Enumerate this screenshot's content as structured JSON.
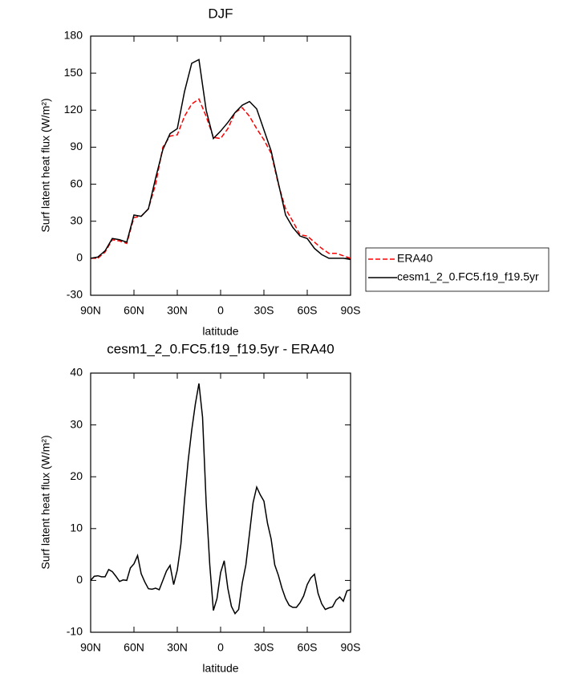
{
  "chart_data": [
    {
      "type": "line",
      "title": "DJF",
      "xlabel": "latitude",
      "ylabel": "Surf latent heat flux (W/m²)",
      "x": [
        90,
        85,
        80,
        75,
        70,
        65,
        60,
        55,
        50,
        45,
        40,
        35,
        30,
        25,
        20,
        15,
        10,
        5,
        0,
        -5,
        -10,
        -15,
        -20,
        -25,
        -30,
        -35,
        -40,
        -45,
        -50,
        -55,
        -60,
        -65,
        -70,
        -75,
        -80,
        -85,
        -90
      ],
      "series": [
        {
          "name": "ERA40",
          "color": "#ff0000",
          "dashed": true,
          "values": [
            0,
            0,
            5,
            15,
            14,
            12,
            33,
            34,
            40,
            60,
            90,
            99,
            100,
            115,
            125,
            129,
            115,
            98,
            97,
            105,
            118,
            122,
            115,
            105,
            96,
            85,
            60,
            40,
            30,
            19,
            18,
            13,
            8,
            4,
            4,
            2,
            0
          ]
        },
        {
          "name": "cesm1_2_0.FC5.f19_f19.5yr",
          "color": "#000000",
          "dashed": false,
          "values": [
            0,
            1,
            6,
            16,
            15,
            13,
            35,
            34,
            40,
            65,
            88,
            101,
            105,
            135,
            158,
            161,
            120,
            97,
            103,
            110,
            118,
            124,
            127,
            121,
            104,
            87,
            61,
            35,
            25,
            18,
            16,
            8,
            3,
            0,
            0,
            0,
            -1
          ]
        }
      ],
      "xlim": [
        90,
        -90
      ],
      "ylim": [
        -30,
        180
      ],
      "xticks": [
        {
          "value": 90,
          "label": "90N"
        },
        {
          "value": 60,
          "label": "60N"
        },
        {
          "value": 30,
          "label": "30N"
        },
        0,
        {
          "value": -30,
          "label": "30S"
        },
        {
          "value": -60,
          "label": "60S"
        },
        {
          "value": -90,
          "label": "90S"
        }
      ],
      "yticks": [
        -30,
        0,
        30,
        60,
        90,
        120,
        150,
        180
      ],
      "legend": "right"
    },
    {
      "type": "line",
      "title": "cesm1_2_0.FC5.f19_f19.5yr - ERA40",
      "xlabel": "latitude",
      "ylabel": "Surf latent heat flux (W/m²)",
      "x": [
        90,
        87.5,
        85,
        82.5,
        80,
        77.5,
        75,
        72.5,
        70,
        67.5,
        65,
        62.5,
        60,
        57.5,
        55,
        52.5,
        50,
        47.5,
        45,
        42.5,
        40,
        37.5,
        35,
        32.5,
        30,
        27.5,
        25,
        22.5,
        20,
        17.5,
        15,
        12.5,
        10,
        7.5,
        5,
        2.5,
        0,
        -2.5,
        -5,
        -7.5,
        -10,
        -12.5,
        -15,
        -17.5,
        -20,
        -22.5,
        -25,
        -27.5,
        -30,
        -32.5,
        -35,
        -37.5,
        -40,
        -42.5,
        -45,
        -47.5,
        -50,
        -52.5,
        -55,
        -57.5,
        -60,
        -62.5,
        -65,
        -67.5,
        -70,
        -72.5,
        -75,
        -77.5,
        -80,
        -82.5,
        -85,
        -87.5,
        -90
      ],
      "series": [
        {
          "color": "#000000",
          "dashed": false,
          "values": [
            0,
            0.8,
            0.9,
            0.7,
            0.7,
            2.1,
            1.7,
            0.8,
            -0.2,
            0.1,
            0,
            2.4,
            3.2,
            4.8,
            1.3,
            -0.3,
            -1.6,
            -1.7,
            -1.5,
            -1.8,
            0,
            1.8,
            2.9,
            -0.8,
            2,
            7,
            15.5,
            23,
            29,
            34,
            38,
            31.5,
            15,
            3,
            -5.8,
            -3.5,
            1.5,
            3.8,
            -1.5,
            -5,
            -6.4,
            -5.6,
            -0.5,
            3,
            9,
            15,
            18,
            16.5,
            15.3,
            11,
            8,
            3,
            1,
            -1.5,
            -3.5,
            -4.8,
            -5.2,
            -5.2,
            -4.3,
            -3,
            -0.8,
            0.5,
            1.2,
            -2.5,
            -4.5,
            -5.6,
            -5.3,
            -5.1,
            -3.8,
            -3.2,
            -4,
            -2,
            -1.8
          ]
        }
      ],
      "xlim": [
        90,
        -90
      ],
      "ylim": [
        -10,
        40
      ],
      "xticks": [
        {
          "value": 90,
          "label": "90N"
        },
        {
          "value": 60,
          "label": "60N"
        },
        {
          "value": 30,
          "label": "30N"
        },
        0,
        {
          "value": -30,
          "label": "30S"
        },
        {
          "value": -60,
          "label": "60S"
        },
        {
          "value": -90,
          "label": "90S"
        }
      ],
      "yticks": [
        -10,
        0,
        10,
        20,
        30,
        40
      ]
    }
  ]
}
